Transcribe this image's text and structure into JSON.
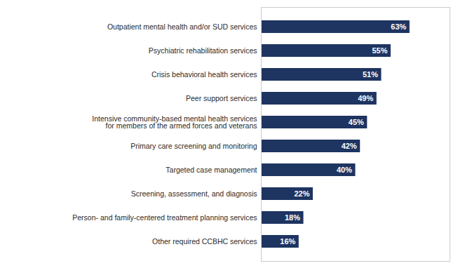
{
  "chart_data": {
    "type": "bar",
    "orientation": "horizontal",
    "categories": [
      "Outpatient mental health and/or SUD services",
      "Psychiatric rehabilitation services",
      "Crisis behavioral health services",
      "Peer support services",
      "Intensive community-based mental health services\nfor members of the armed forces and veterans",
      "Primary care screening and monitoring",
      "Targeted case management",
      "Screening, assessment, and diagnosis",
      "Person- and family-centered treatment planning services",
      "Other required CCBHC services"
    ],
    "values": [
      63,
      55,
      51,
      49,
      45,
      42,
      40,
      22,
      18,
      16
    ],
    "value_labels": [
      "63%",
      "55%",
      "51%",
      "49%",
      "45%",
      "42%",
      "40%",
      "22%",
      "18%",
      "16%"
    ],
    "data_labels": true,
    "color": "#1e3461",
    "xlim": [
      0,
      80
    ],
    "tick_labels": "y",
    "grid": false
  }
}
